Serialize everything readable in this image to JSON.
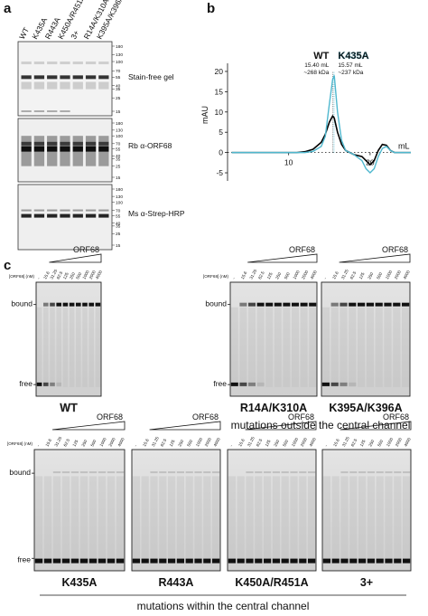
{
  "panel_labels": [
    "a",
    "b",
    "c"
  ],
  "mutants": [
    {
      "name": "WT",
      "color": "#9a9a9a"
    },
    {
      "name": "K435A",
      "color": "#3aa3bd"
    },
    {
      "name": "R443A",
      "color": "#2c3d7c"
    },
    {
      "name": "K450A/R451A",
      "color": "#3c7a45"
    },
    {
      "name": "3+",
      "color": "#33204f"
    },
    {
      "name": "R14A/K310A",
      "color": "#d88422"
    },
    {
      "name": "K395A/K396A",
      "color": "#c7b320"
    }
  ],
  "panel_a": {
    "ladder": [
      180,
      130,
      100,
      70,
      55,
      40,
      35,
      25,
      15
    ],
    "blots": [
      "Stain-free gel",
      "Rb α-ORF68",
      "Ms α-Strep-HRP"
    ]
  },
  "chart_data": {
    "type": "line",
    "x_label": "mL",
    "y_label": "mAU",
    "x": [
      3,
      6,
      9,
      11,
      12,
      13,
      14,
      14.5,
      15,
      15.4,
      15.6,
      16,
      16.5,
      17,
      18,
      19,
      19.5,
      20,
      20.5,
      21,
      21.5,
      22,
      22.5,
      23,
      24,
      25
    ],
    "series": [
      {
        "name": "WT",
        "color": "#000000",
        "values": [
          0,
          0,
          0,
          0,
          0.2,
          0.8,
          2.5,
          4.5,
          7.5,
          9,
          8.5,
          5,
          2,
          0.5,
          -0.5,
          -1,
          -2,
          -3,
          -2,
          0.5,
          2,
          1.8,
          0.5,
          0,
          0,
          0
        ]
      },
      {
        "name": "K435A",
        "color": "#4fb8cf",
        "values": [
          0,
          0,
          0,
          0,
          0,
          0.3,
          1.5,
          4,
          12,
          18,
          19,
          10,
          3,
          0.5,
          -0.5,
          -2,
          -4,
          -5,
          -4,
          -1,
          1,
          1.5,
          0.5,
          0,
          0,
          0
        ]
      }
    ],
    "vlines": [
      {
        "value": 15.4,
        "label": "15.40 mL"
      },
      {
        "value": 15.57,
        "label": "15.57 mL"
      }
    ],
    "mw_labels": [
      "~268 kDa",
      "~237 kDa"
    ],
    "xlim": [
      2.5,
      25
    ],
    "ylim": [
      -7,
      22
    ],
    "xticks": [
      10,
      20
    ],
    "yticks": [
      -5,
      0,
      5,
      10,
      15,
      20
    ]
  },
  "panel_c": {
    "conc_label": "[ORF68] (nM)",
    "concentrations": [
      "-",
      "15.6",
      "31.25",
      "62.5",
      "125",
      "250",
      "500",
      "1000",
      "2000",
      "4000"
    ],
    "protein": "ORF68",
    "bound": "bound",
    "free": "free",
    "groups": [
      "mutations outside the central channel",
      "mutations within the central channel"
    ]
  }
}
